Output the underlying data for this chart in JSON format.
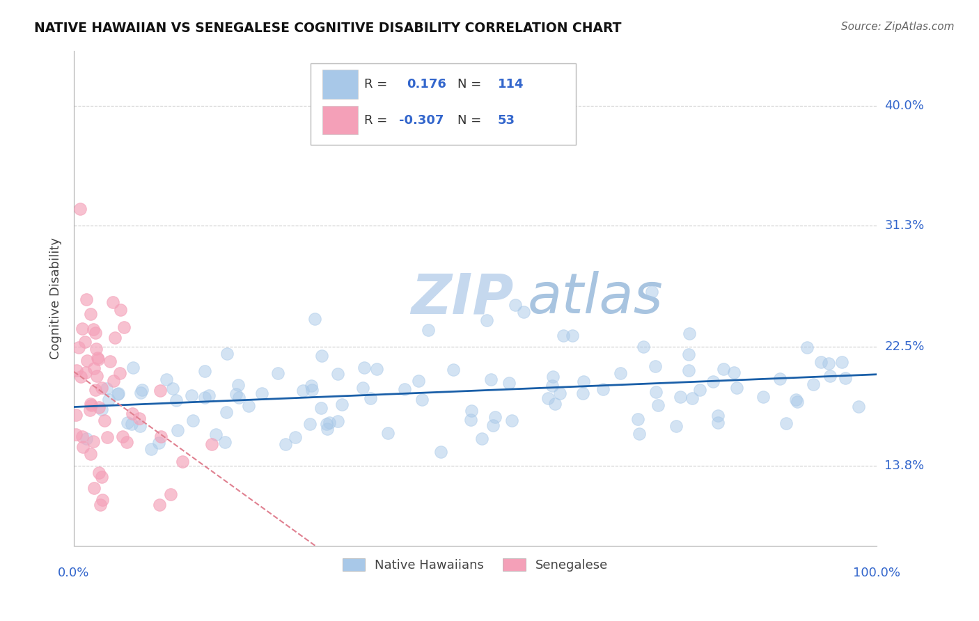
{
  "title": "NATIVE HAWAIIAN VS SENEGALESE COGNITIVE DISABILITY CORRELATION CHART",
  "source": "Source: ZipAtlas.com",
  "ylabel": "Cognitive Disability",
  "ytick_positions": [
    0.138,
    0.225,
    0.313,
    0.4
  ],
  "ytick_labels": [
    "13.8%",
    "22.5%",
    "31.3%",
    "40.0%"
  ],
  "xlim": [
    0.0,
    1.0
  ],
  "ylim": [
    0.08,
    0.44
  ],
  "r_hawaiian": 0.176,
  "n_hawaiian": 114,
  "r_senegalese": -0.307,
  "n_senegalese": 53,
  "blue_scatter_color": "#a8c8e8",
  "pink_scatter_color": "#f4a0b8",
  "line_blue": "#1a5fa8",
  "line_pink": "#e08090",
  "watermark_color": "#d0dff0",
  "grid_color": "#cccccc",
  "title_color": "#111111",
  "axis_label_color": "#444444",
  "tick_label_color": "#3366cc",
  "source_color": "#666666",
  "legend_text_color": "#3366cc",
  "legend_label_color": "#333333"
}
